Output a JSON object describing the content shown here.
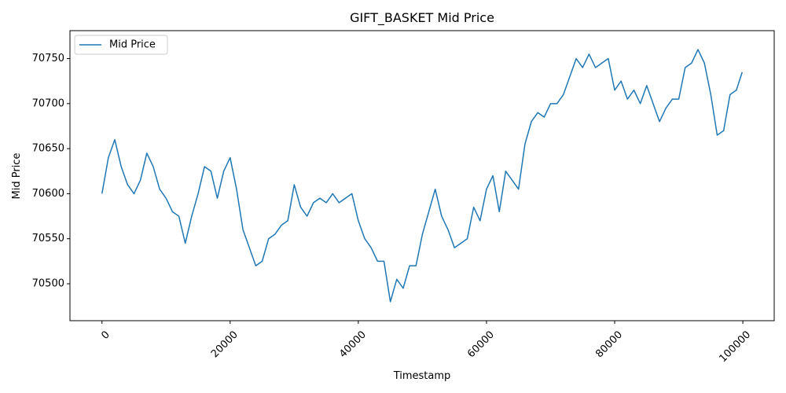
{
  "chart_data": {
    "type": "line",
    "title": "GIFT_BASKET Mid Price",
    "x_label": "Timestamp",
    "y_label": "Mid Price",
    "x": [
      0,
      1000,
      2000,
      3000,
      4000,
      5000,
      6000,
      7000,
      8000,
      9000,
      10000,
      11000,
      12000,
      13000,
      14000,
      15000,
      16000,
      17000,
      18000,
      19000,
      20000,
      21000,
      22000,
      23000,
      24000,
      25000,
      26000,
      27000,
      28000,
      29000,
      30000,
      31000,
      32000,
      33000,
      34000,
      35000,
      36000,
      37000,
      38000,
      39000,
      40000,
      41000,
      42000,
      43000,
      44000,
      45000,
      46000,
      47000,
      48000,
      49000,
      50000,
      51000,
      52000,
      53000,
      54000,
      55000,
      56000,
      57000,
      58000,
      59000,
      60000,
      61000,
      62000,
      63000,
      64000,
      65000,
      66000,
      67000,
      68000,
      69000,
      70000,
      71000,
      72000,
      73000,
      74000,
      75000,
      76000,
      77000,
      78000,
      79000,
      80000,
      81000,
      82000,
      83000,
      84000,
      85000,
      86000,
      87000,
      88000,
      89000,
      90000,
      91000,
      92000,
      93000,
      94000,
      95000,
      96000,
      97000,
      98000,
      99000,
      99900
    ],
    "series": [
      {
        "name": "Mid Price",
        "color": "#1f77b4",
        "values": [
          70600,
          70640,
          70660,
          70630,
          70610,
          70600,
          70615,
          70645,
          70630,
          70605,
          70595,
          70580,
          70575,
          70545,
          70575,
          70600,
          70630,
          70625,
          70595,
          70625,
          70640,
          70605,
          70560,
          70540,
          70520,
          70525,
          70550,
          70555,
          70565,
          70570,
          70610,
          70585,
          70575,
          70590,
          70595,
          70590,
          70600,
          70590,
          70595,
          70600,
          70570,
          70550,
          70540,
          70525,
          70525,
          70480,
          70505,
          70495,
          70520,
          70520,
          70555,
          70580,
          70605,
          70575,
          70560,
          70540,
          70545,
          70550,
          70585,
          70570,
          70605,
          70620,
          70580,
          70625,
          70615,
          70605,
          70655,
          70680,
          70690,
          70685,
          70700,
          70700,
          70710,
          70730,
          70750,
          70740,
          70755,
          70740,
          70745,
          70750,
          70715,
          70725,
          70705,
          70715,
          70700,
          70720,
          70700,
          70680,
          70695,
          70705,
          70705,
          70740,
          70745,
          70760,
          70745,
          70710,
          70665,
          70670,
          70710,
          70715,
          70735
        ]
      }
    ],
    "xlim": [
      -4995,
      104895
    ],
    "ylim": [
      70459,
      70781
    ],
    "xticks": [
      0,
      20000,
      40000,
      60000,
      80000,
      100000
    ],
    "yticks": [
      70500,
      70550,
      70600,
      70650,
      70700,
      70750
    ],
    "legend": "upper left",
    "grid": false
  }
}
